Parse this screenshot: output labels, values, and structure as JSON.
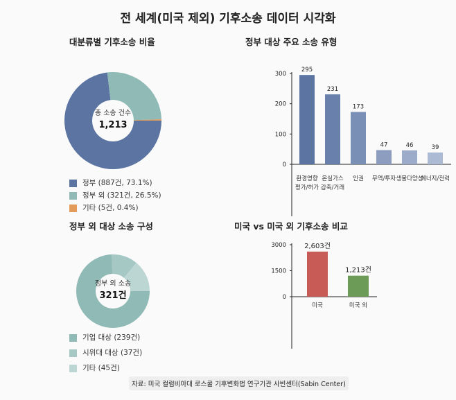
{
  "title": "전 세계(미국 제외) 기후소송 데이터 시각화",
  "source": "자료: 미국 컬럼비아대 로스쿨 기후변화법 연구기관 사빈센터(Sabin Center)",
  "chart_data": [
    {
      "type": "pie",
      "title": "대분류별 기후소송 비율",
      "center_label": "총 소송 건수",
      "center_value": "1,213",
      "slices": [
        {
          "name": "정부",
          "value": 887,
          "pct": 73.1,
          "legend": "정부 (887건, 73.1%)",
          "color": "#5b74a2"
        },
        {
          "name": "정부 외",
          "value": 321,
          "pct": 26.5,
          "legend": "정부 외 (321건, 26.5%)",
          "color": "#8fbab5"
        },
        {
          "name": "기타",
          "value": 5,
          "pct": 0.4,
          "legend": "기타 (5건, 0.4%)",
          "color": "#e39b5a"
        }
      ]
    },
    {
      "type": "bar",
      "title": "정부 대상 주요 소송 유형",
      "categories": [
        [
          "환경영향",
          "평가/허가"
        ],
        [
          "온실가스",
          "감축/거래"
        ],
        [
          "인권"
        ],
        [
          "무역/투자"
        ],
        [
          "생물다양성"
        ],
        [
          "에너지/전력"
        ]
      ],
      "values": [
        295,
        231,
        173,
        47,
        46,
        39
      ],
      "yticks": [
        0,
        100,
        200,
        300
      ],
      "ylim": [
        0,
        300
      ],
      "colors": [
        "#5b74a2",
        "#6880ab",
        "#7a8fb6",
        "#8c9dc0",
        "#9cabca",
        "#adbad4"
      ]
    },
    {
      "type": "pie",
      "title": "정부 외 대상 소송 구성",
      "center_label": "정부 외 소송",
      "center_value": "321건",
      "slices": [
        {
          "name": "기업 대상",
          "value": 239,
          "legend": "기업 대상 (239건)",
          "color": "#8fbab5"
        },
        {
          "name": "시위대 대상",
          "value": 37,
          "legend": "시위대 대상 (37건)",
          "color": "#a5c8c4"
        },
        {
          "name": "기타",
          "value": 45,
          "legend": "기타 (45건)",
          "color": "#bcd6d3"
        }
      ]
    },
    {
      "type": "bar",
      "title": "미국 vs 미국 외 기후소송 비교",
      "categories": [
        "미국",
        "미국 외"
      ],
      "values": [
        2603,
        1213
      ],
      "labels": [
        "2,603건",
        "1,213건"
      ],
      "yticks": [
        0,
        1500,
        3000
      ],
      "ylim": [
        0,
        3000
      ],
      "colors": [
        "#c95b56",
        "#6b9b56"
      ]
    }
  ]
}
